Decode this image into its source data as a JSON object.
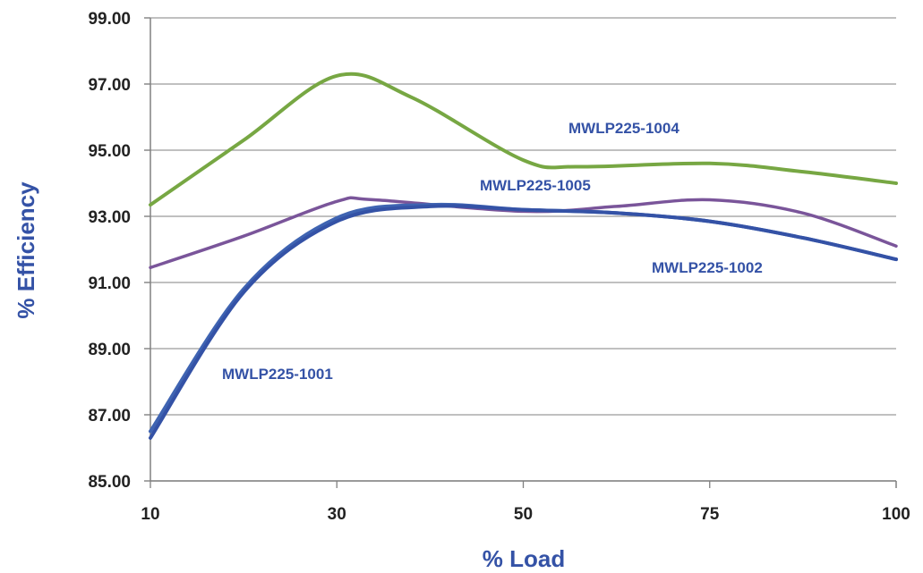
{
  "chart_data": {
    "type": "line",
    "xlabel": "% Load",
    "ylabel": "% Efficiency",
    "x_categories": [
      "10",
      "30",
      "50",
      "75",
      "100"
    ],
    "ylim": [
      85,
      99
    ],
    "y_ticks": [
      "85.00",
      "87.00",
      "89.00",
      "91.00",
      "93.00",
      "95.00",
      "97.00",
      "99.00"
    ],
    "grid": "horizontal",
    "legend": "none (series labelled inline)",
    "series": [
      {
        "name": "MWLP225-1004",
        "color": "#77a743",
        "values": [
          93.35,
          97.25,
          94.7,
          94.6,
          94.0
        ],
        "points": [
          [
            0,
            93.35
          ],
          [
            0.5,
            95.3
          ],
          [
            1.0,
            97.25
          ],
          [
            1.4,
            96.6
          ],
          [
            2.0,
            94.7
          ],
          [
            2.3,
            94.5
          ],
          [
            3.0,
            94.6
          ],
          [
            3.5,
            94.35
          ],
          [
            4.0,
            94.0
          ]
        ]
      },
      {
        "name": "MWLP225-1005",
        "color": "#7a559a",
        "values": [
          91.45,
          93.45,
          93.15,
          93.5,
          92.1
        ],
        "points": [
          [
            0,
            91.45
          ],
          [
            0.5,
            92.4
          ],
          [
            1.0,
            93.45
          ],
          [
            1.2,
            93.5
          ],
          [
            2.0,
            93.15
          ],
          [
            2.5,
            93.3
          ],
          [
            3.0,
            93.5
          ],
          [
            3.5,
            93.1
          ],
          [
            4.0,
            92.1
          ]
        ]
      },
      {
        "name": "MWLP225-1002",
        "color": "#3f64b2",
        "values": [
          86.5,
          92.95,
          93.2,
          92.85,
          91.7
        ],
        "points": [
          [
            0,
            86.5
          ],
          [
            0.5,
            90.8
          ],
          [
            1.0,
            92.95
          ],
          [
            1.5,
            93.35
          ],
          [
            2.0,
            93.2
          ],
          [
            2.5,
            93.1
          ],
          [
            3.0,
            92.85
          ],
          [
            3.5,
            92.35
          ],
          [
            4.0,
            91.7
          ]
        ]
      },
      {
        "name": "MWLP225-1001",
        "color": "#3452a6",
        "values": [
          86.3,
          92.85,
          93.2,
          92.85,
          91.7
        ],
        "points": [
          [
            0,
            86.3
          ],
          [
            0.5,
            90.7
          ],
          [
            1.0,
            92.85
          ],
          [
            1.5,
            93.3
          ],
          [
            2.0,
            93.2
          ],
          [
            2.5,
            93.1
          ],
          [
            3.0,
            92.85
          ],
          [
            3.5,
            92.35
          ],
          [
            4.0,
            91.7
          ]
        ]
      }
    ],
    "annotations": [
      "MWLP225-1004",
      "MWLP225-1005",
      "MWLP225-1002",
      "MWLP225-1001"
    ]
  }
}
